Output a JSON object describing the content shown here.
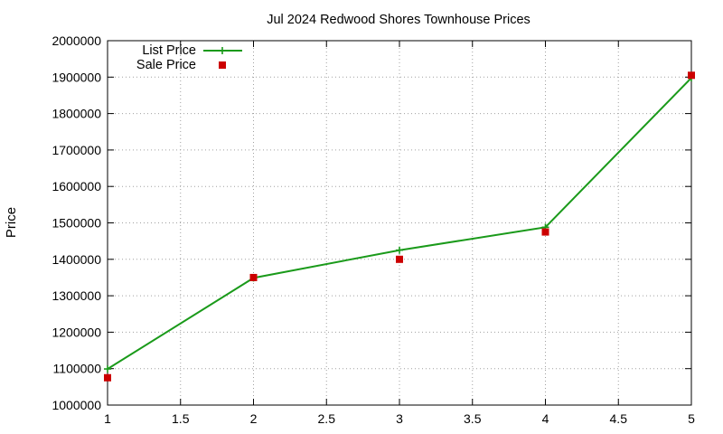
{
  "chart_data": {
    "type": "line",
    "title": "Jul 2024 Redwood Shores Townhouse Prices",
    "xlabel": "",
    "ylabel": "Price",
    "xlim": [
      1,
      5
    ],
    "ylim": [
      1000000,
      2000000
    ],
    "xticks": [
      1,
      1.5,
      2,
      2.5,
      3,
      3.5,
      4,
      4.5,
      5
    ],
    "yticks": [
      1000000,
      1100000,
      1200000,
      1300000,
      1400000,
      1500000,
      1600000,
      1700000,
      1800000,
      1900000,
      2000000
    ],
    "grid": true,
    "legend": "top-left",
    "x": [
      1,
      2,
      3,
      4,
      5
    ],
    "series": [
      {
        "name": "List Price",
        "style": "line-with-plus-markers",
        "color": "#1a9a1a",
        "values": [
          1099000,
          1349000,
          1425000,
          1488000,
          1898000
        ]
      },
      {
        "name": "Sale Price",
        "style": "square-points",
        "color": "#cc0000",
        "values": [
          1075000,
          1350000,
          1400000,
          1475000,
          1905000
        ]
      }
    ]
  }
}
